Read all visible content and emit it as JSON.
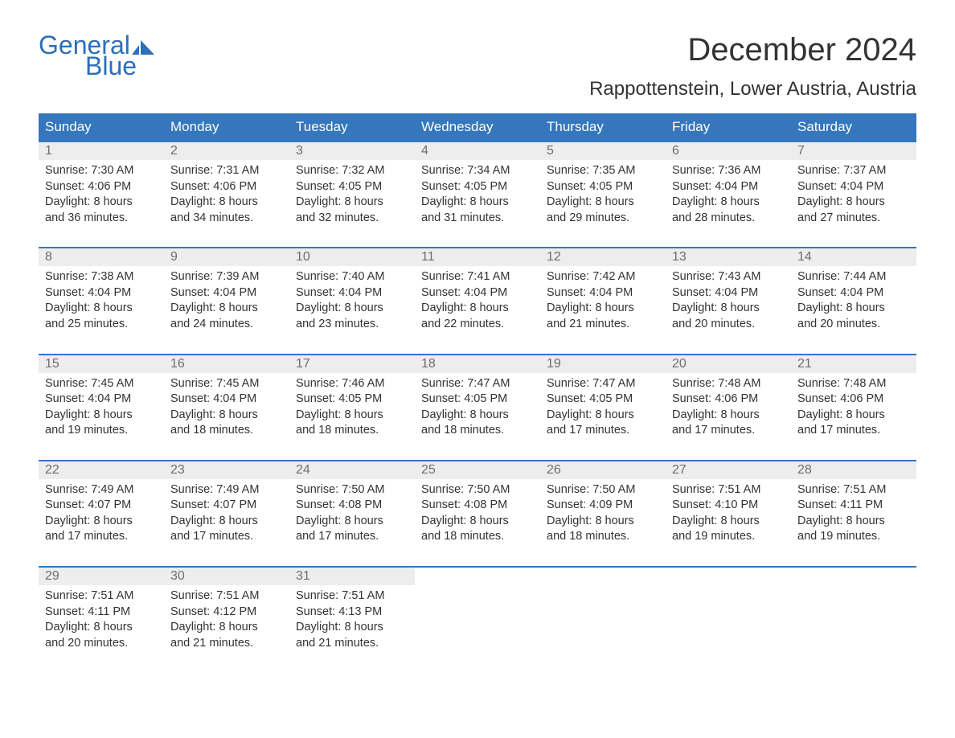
{
  "logo": {
    "word1": "General",
    "word2": "Blue",
    "color": "#2d6fb8"
  },
  "title": "December 2024",
  "location": "Rappottenstein, Lower Austria, Austria",
  "colors": {
    "header_bg": "#3576bc",
    "header_text": "#ffffff",
    "daynum_bg": "#ededed",
    "daynum_text": "#6e6e6e",
    "body_text": "#333333",
    "border": "#3576bc"
  },
  "daysOfWeek": [
    "Sunday",
    "Monday",
    "Tuesday",
    "Wednesday",
    "Thursday",
    "Friday",
    "Saturday"
  ],
  "weeks": [
    [
      {
        "n": "1",
        "sr": "7:30 AM",
        "ss": "4:06 PM",
        "dl": "8 hours and 36 minutes."
      },
      {
        "n": "2",
        "sr": "7:31 AM",
        "ss": "4:06 PM",
        "dl": "8 hours and 34 minutes."
      },
      {
        "n": "3",
        "sr": "7:32 AM",
        "ss": "4:05 PM",
        "dl": "8 hours and 32 minutes."
      },
      {
        "n": "4",
        "sr": "7:34 AM",
        "ss": "4:05 PM",
        "dl": "8 hours and 31 minutes."
      },
      {
        "n": "5",
        "sr": "7:35 AM",
        "ss": "4:05 PM",
        "dl": "8 hours and 29 minutes."
      },
      {
        "n": "6",
        "sr": "7:36 AM",
        "ss": "4:04 PM",
        "dl": "8 hours and 28 minutes."
      },
      {
        "n": "7",
        "sr": "7:37 AM",
        "ss": "4:04 PM",
        "dl": "8 hours and 27 minutes."
      }
    ],
    [
      {
        "n": "8",
        "sr": "7:38 AM",
        "ss": "4:04 PM",
        "dl": "8 hours and 25 minutes."
      },
      {
        "n": "9",
        "sr": "7:39 AM",
        "ss": "4:04 PM",
        "dl": "8 hours and 24 minutes."
      },
      {
        "n": "10",
        "sr": "7:40 AM",
        "ss": "4:04 PM",
        "dl": "8 hours and 23 minutes."
      },
      {
        "n": "11",
        "sr": "7:41 AM",
        "ss": "4:04 PM",
        "dl": "8 hours and 22 minutes."
      },
      {
        "n": "12",
        "sr": "7:42 AM",
        "ss": "4:04 PM",
        "dl": "8 hours and 21 minutes."
      },
      {
        "n": "13",
        "sr": "7:43 AM",
        "ss": "4:04 PM",
        "dl": "8 hours and 20 minutes."
      },
      {
        "n": "14",
        "sr": "7:44 AM",
        "ss": "4:04 PM",
        "dl": "8 hours and 20 minutes."
      }
    ],
    [
      {
        "n": "15",
        "sr": "7:45 AM",
        "ss": "4:04 PM",
        "dl": "8 hours and 19 minutes."
      },
      {
        "n": "16",
        "sr": "7:45 AM",
        "ss": "4:04 PM",
        "dl": "8 hours and 18 minutes."
      },
      {
        "n": "17",
        "sr": "7:46 AM",
        "ss": "4:05 PM",
        "dl": "8 hours and 18 minutes."
      },
      {
        "n": "18",
        "sr": "7:47 AM",
        "ss": "4:05 PM",
        "dl": "8 hours and 18 minutes."
      },
      {
        "n": "19",
        "sr": "7:47 AM",
        "ss": "4:05 PM",
        "dl": "8 hours and 17 minutes."
      },
      {
        "n": "20",
        "sr": "7:48 AM",
        "ss": "4:06 PM",
        "dl": "8 hours and 17 minutes."
      },
      {
        "n": "21",
        "sr": "7:48 AM",
        "ss": "4:06 PM",
        "dl": "8 hours and 17 minutes."
      }
    ],
    [
      {
        "n": "22",
        "sr": "7:49 AM",
        "ss": "4:07 PM",
        "dl": "8 hours and 17 minutes."
      },
      {
        "n": "23",
        "sr": "7:49 AM",
        "ss": "4:07 PM",
        "dl": "8 hours and 17 minutes."
      },
      {
        "n": "24",
        "sr": "7:50 AM",
        "ss": "4:08 PM",
        "dl": "8 hours and 17 minutes."
      },
      {
        "n": "25",
        "sr": "7:50 AM",
        "ss": "4:08 PM",
        "dl": "8 hours and 18 minutes."
      },
      {
        "n": "26",
        "sr": "7:50 AM",
        "ss": "4:09 PM",
        "dl": "8 hours and 18 minutes."
      },
      {
        "n": "27",
        "sr": "7:51 AM",
        "ss": "4:10 PM",
        "dl": "8 hours and 19 minutes."
      },
      {
        "n": "28",
        "sr": "7:51 AM",
        "ss": "4:11 PM",
        "dl": "8 hours and 19 minutes."
      }
    ],
    [
      {
        "n": "29",
        "sr": "7:51 AM",
        "ss": "4:11 PM",
        "dl": "8 hours and 20 minutes."
      },
      {
        "n": "30",
        "sr": "7:51 AM",
        "ss": "4:12 PM",
        "dl": "8 hours and 21 minutes."
      },
      {
        "n": "31",
        "sr": "7:51 AM",
        "ss": "4:13 PM",
        "dl": "8 hours and 21 minutes."
      },
      null,
      null,
      null,
      null
    ]
  ],
  "labels": {
    "sunrise": "Sunrise: ",
    "sunset": "Sunset: ",
    "daylight": "Daylight: "
  }
}
